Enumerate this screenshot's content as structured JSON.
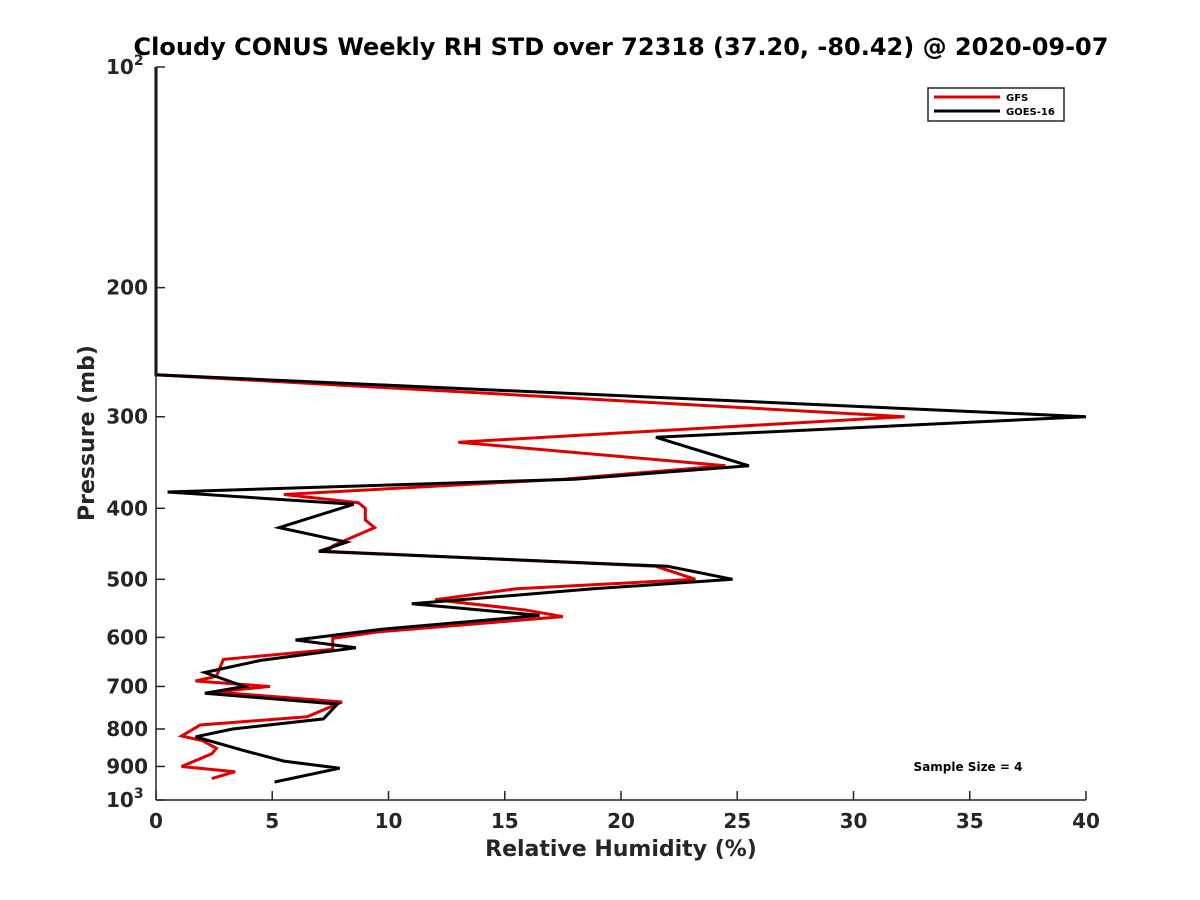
{
  "chart_data": {
    "type": "line",
    "title": "Cloudy CONUS Weekly RH STD over 72318 (37.20, -80.42) @ 2020-09-07",
    "xlabel": "Relative Humidity (%)",
    "ylabel": "Pressure (mb)",
    "xlim": [
      0,
      40
    ],
    "ylim": [
      100,
      1000
    ],
    "yscale": "log",
    "y_reversed": true,
    "xticks": [
      {
        "value": 0,
        "label": "0"
      },
      {
        "value": 5,
        "label": "5"
      },
      {
        "value": 10,
        "label": "10"
      },
      {
        "value": 15,
        "label": "15"
      },
      {
        "value": 20,
        "label": "20"
      },
      {
        "value": 25,
        "label": "25"
      },
      {
        "value": 30,
        "label": "30"
      },
      {
        "value": 35,
        "label": "35"
      },
      {
        "value": 40,
        "label": "40"
      }
    ],
    "yticks": [
      {
        "value": 100,
        "label": "10",
        "sup": "2"
      },
      {
        "value": 200,
        "label": "200",
        "sup": ""
      },
      {
        "value": 300,
        "label": "300",
        "sup": ""
      },
      {
        "value": 400,
        "label": "400",
        "sup": ""
      },
      {
        "value": 500,
        "label": "500",
        "sup": ""
      },
      {
        "value": 600,
        "label": "600",
        "sup": ""
      },
      {
        "value": 700,
        "label": "700",
        "sup": ""
      },
      {
        "value": 800,
        "label": "800",
        "sup": ""
      },
      {
        "value": 900,
        "label": "900",
        "sup": ""
      },
      {
        "value": 1000,
        "label": "10",
        "sup": "3"
      }
    ],
    "legend_position": "top-right",
    "grid": false,
    "annotation": "Sample Size = 4",
    "series": [
      {
        "name": "GFS",
        "color": "#e00000",
        "points": [
          [
            0,
            100
          ],
          [
            0,
            250
          ],
          [
            0,
            263
          ],
          [
            32.2,
            300
          ],
          [
            13,
            325
          ],
          [
            24.5,
            350
          ],
          [
            17.5,
            365
          ],
          [
            5.5,
            383
          ],
          [
            8.7,
            393
          ],
          [
            9.0,
            400
          ],
          [
            9.0,
            415
          ],
          [
            9.4,
            425
          ],
          [
            7.6,
            450
          ],
          [
            7.4,
            458
          ],
          [
            21.5,
            480
          ],
          [
            23.2,
            500
          ],
          [
            15.5,
            515
          ],
          [
            12,
            533
          ],
          [
            15.8,
            550
          ],
          [
            17.5,
            562
          ],
          [
            9.5,
            590
          ],
          [
            7.6,
            602
          ],
          [
            7.6,
            623
          ],
          [
            2.9,
            643
          ],
          [
            2.6,
            678
          ],
          [
            1.7,
            688
          ],
          [
            4.9,
            700
          ],
          [
            2.5,
            712
          ],
          [
            8.0,
            735
          ],
          [
            6.5,
            770
          ],
          [
            1.9,
            790
          ],
          [
            1.1,
            818
          ],
          [
            2.0,
            830
          ],
          [
            2.6,
            850
          ],
          [
            2.4,
            865
          ],
          [
            1.1,
            900
          ],
          [
            3.4,
            915
          ],
          [
            2.4,
            935
          ]
        ]
      },
      {
        "name": "GOES-16",
        "color": "#000000",
        "points": [
          [
            0,
            100
          ],
          [
            0,
            250
          ],
          [
            0,
            263
          ],
          [
            40,
            300
          ],
          [
            21.5,
            320
          ],
          [
            25.5,
            350
          ],
          [
            18,
            365
          ],
          [
            0.5,
            380
          ],
          [
            8.5,
            395
          ],
          [
            5.3,
            425
          ],
          [
            8.2,
            445
          ],
          [
            7.0,
            458
          ],
          [
            22,
            480
          ],
          [
            24.8,
            500
          ],
          [
            18.8,
            515
          ],
          [
            11,
            540
          ],
          [
            16.5,
            560
          ],
          [
            9.7,
            585
          ],
          [
            6.0,
            605
          ],
          [
            8.6,
            620
          ],
          [
            4.5,
            645
          ],
          [
            2.1,
            670
          ],
          [
            3.8,
            700
          ],
          [
            2.1,
            715
          ],
          [
            7.8,
            740
          ],
          [
            7.2,
            775
          ],
          [
            3.3,
            800
          ],
          [
            1.7,
            820
          ],
          [
            3.7,
            855
          ],
          [
            5.5,
            885
          ],
          [
            7.9,
            905
          ],
          [
            5.1,
            945
          ]
        ]
      }
    ]
  }
}
